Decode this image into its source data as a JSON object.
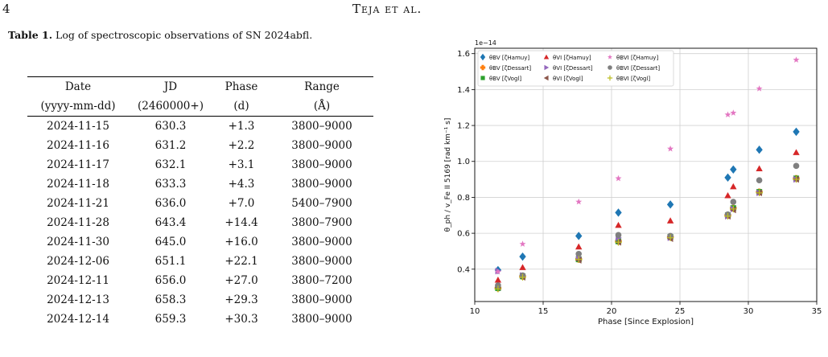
{
  "header": {
    "page_number": "4",
    "running_title": "Teja et al."
  },
  "table": {
    "caption_label": "Table 1.",
    "caption_text": "Log of spectroscopic observations of SN 2024abfl.",
    "headers": [
      [
        "Date",
        "JD",
        "Phase",
        "Range"
      ],
      [
        "(yyyy-mm-dd)",
        "(2460000+)",
        "(d)",
        "(Å)"
      ]
    ],
    "rows": [
      [
        "2024-11-15",
        "630.3",
        "+1.3",
        "3800–9000"
      ],
      [
        "2024-11-16",
        "631.2",
        "+2.2",
        "3800–9000"
      ],
      [
        "2024-11-17",
        "632.1",
        "+3.1",
        "3800–9000"
      ],
      [
        "2024-11-18",
        "633.3",
        "+4.3",
        "3800–9000"
      ],
      [
        "2024-11-21",
        "636.0",
        "+7.0",
        "5400–7900"
      ],
      [
        "2024-11-28",
        "643.4",
        "+14.4",
        "3800–7900"
      ],
      [
        "2024-11-30",
        "645.0",
        "+16.0",
        "3800–9000"
      ],
      [
        "2024-12-06",
        "651.1",
        "+22.1",
        "3800–9000"
      ],
      [
        "2024-12-11",
        "656.0",
        "+27.0",
        "3800–7200"
      ],
      [
        "2024-12-13",
        "658.3",
        "+29.3",
        "3800–9000"
      ],
      [
        "2024-12-14",
        "659.3",
        "+30.3",
        "3800–9000"
      ]
    ]
  },
  "chart_data": {
    "type": "scatter",
    "title": "",
    "xlabel": "Phase [Since Explosion]",
    "ylabel": "θ_ph / v_Fe II 5169 [rad km⁻¹ s]",
    "y_offset_text": "1e−14",
    "xlim": [
      10,
      35
    ],
    "ylim": [
      0.22,
      1.63
    ],
    "x_ticks": [
      "10",
      "15",
      "20",
      "25",
      "30",
      "35"
    ],
    "y_ticks": [
      "0.4",
      "0.6",
      "0.8",
      "1.0",
      "1.2",
      "1.4",
      "1.6"
    ],
    "grid": true,
    "legend_position": "top-left",
    "x": [
      11.7,
      13.5,
      17.6,
      20.5,
      24.3,
      28.5,
      28.9,
      30.8,
      33.5
    ],
    "series": [
      {
        "name": "θBV [ζHamuy]",
        "marker": "diamond",
        "color": "#1f77b4",
        "values": [
          0.395,
          0.47,
          0.585,
          0.715,
          0.76,
          0.91,
          0.955,
          1.065,
          1.165
        ]
      },
      {
        "name": "θBV [ζDessart]",
        "marker": "plus",
        "color": "#ff7f0e",
        "values": [
          0.295,
          0.36,
          0.455,
          0.555,
          0.58,
          0.7,
          0.74,
          0.83,
          0.905
        ]
      },
      {
        "name": "θBV [ζVogl]",
        "marker": "square",
        "color": "#2ca02c",
        "values": [
          0.295,
          0.36,
          0.455,
          0.555,
          0.58,
          0.7,
          0.74,
          0.83,
          0.905
        ]
      },
      {
        "name": "θVI [ζHamuy]",
        "marker": "triangle-up",
        "color": "#d62728",
        "values": [
          0.34,
          0.41,
          0.525,
          0.645,
          0.67,
          0.81,
          0.86,
          0.96,
          1.05
        ]
      },
      {
        "name": "θVI [ζDessart]",
        "marker": "triangle-right",
        "color": "#9467bd",
        "values": [
          0.39,
          0.365,
          0.465,
          0.575,
          0.575,
          0.695,
          0.735,
          0.825,
          0.9
        ]
      },
      {
        "name": "θVI [ζVogl]",
        "marker": "triangle-left",
        "color": "#8c564b",
        "values": [
          0.3,
          0.355,
          0.45,
          0.55,
          0.57,
          0.695,
          0.73,
          0.825,
          0.9
        ]
      },
      {
        "name": "θBVI [ζHamuy]",
        "marker": "star",
        "color": "#e377c2",
        "values": [
          0.385,
          0.54,
          0.775,
          0.905,
          1.07,
          1.26,
          1.27,
          1.405,
          1.565
        ]
      },
      {
        "name": "θBVI [ζDessart]",
        "marker": "circle",
        "color": "#7f7f7f",
        "values": [
          0.31,
          0.365,
          0.485,
          0.59,
          0.585,
          0.705,
          0.775,
          0.895,
          0.975
        ]
      },
      {
        "name": "θBVI [ζVogl]",
        "marker": "plus-thin",
        "color": "#bcbd22",
        "values": [
          0.29,
          0.355,
          0.455,
          0.55,
          0.575,
          0.695,
          0.735,
          0.825,
          0.9
        ]
      }
    ]
  }
}
